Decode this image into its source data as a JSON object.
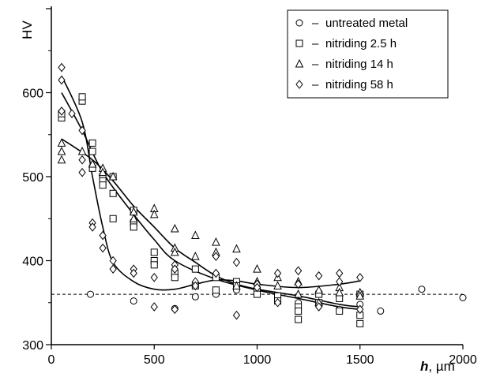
{
  "chart_data": {
    "type": "scatter",
    "ylabel": "HV",
    "xlabel_italic": "h",
    "xlabel_unit": ", µm",
    "xlim": [
      0,
      2000
    ],
    "ylim": [
      300,
      700
    ],
    "xticks": [
      0,
      500,
      1000,
      1500,
      2000
    ],
    "yticks": [
      300,
      400,
      500,
      600
    ],
    "reference_line": {
      "y": 360,
      "style": "dashed"
    },
    "legend_position": "top-right",
    "series": [
      {
        "name": "untreated metal",
        "marker": "circle",
        "points": [
          [
            190,
            360
          ],
          [
            400,
            352
          ],
          [
            600,
            343
          ],
          [
            700,
            357
          ],
          [
            800,
            360
          ],
          [
            900,
            365
          ],
          [
            1000,
            362
          ],
          [
            1100,
            355
          ],
          [
            1200,
            350
          ],
          [
            1300,
            348
          ],
          [
            1400,
            342
          ],
          [
            1500,
            348
          ],
          [
            1600,
            340
          ],
          [
            1800,
            366
          ],
          [
            2000,
            356
          ]
        ],
        "curve": [
          [
            200,
            362
          ],
          [
            1000,
            362
          ],
          [
            2000,
            362
          ]
        ]
      },
      {
        "name": "nitriding 2.5 h",
        "marker": "square",
        "points": [
          [
            50,
            570
          ],
          [
            50,
            575
          ],
          [
            150,
            590
          ],
          [
            150,
            595
          ],
          [
            200,
            540
          ],
          [
            200,
            530
          ],
          [
            200,
            510
          ],
          [
            250,
            500
          ],
          [
            250,
            495
          ],
          [
            250,
            490
          ],
          [
            300,
            500
          ],
          [
            300,
            480
          ],
          [
            300,
            450
          ],
          [
            400,
            460
          ],
          [
            400,
            445
          ],
          [
            400,
            440
          ],
          [
            500,
            410
          ],
          [
            500,
            400
          ],
          [
            500,
            395
          ],
          [
            600,
            385
          ],
          [
            600,
            380
          ],
          [
            700,
            390
          ],
          [
            700,
            370
          ],
          [
            800,
            380
          ],
          [
            800,
            365
          ],
          [
            900,
            375
          ],
          [
            900,
            370
          ],
          [
            1000,
            365
          ],
          [
            1000,
            360
          ],
          [
            1100,
            358
          ],
          [
            1100,
            352
          ],
          [
            1200,
            345
          ],
          [
            1200,
            330
          ],
          [
            1200,
            340
          ],
          [
            1300,
            360
          ],
          [
            1300,
            350
          ],
          [
            1400,
            355
          ],
          [
            1400,
            340
          ],
          [
            1500,
            360
          ],
          [
            1500,
            335
          ],
          [
            1500,
            325
          ]
        ],
        "curve": [
          [
            50,
            600
          ],
          [
            150,
            555
          ],
          [
            250,
            505
          ],
          [
            400,
            455
          ],
          [
            500,
            425
          ],
          [
            600,
            400
          ],
          [
            800,
            378
          ],
          [
            1000,
            365
          ],
          [
            1200,
            355
          ],
          [
            1400,
            345
          ],
          [
            1500,
            342
          ]
        ]
      },
      {
        "name": "nitriding 14 h",
        "marker": "triangle",
        "points": [
          [
            50,
            540
          ],
          [
            50,
            530
          ],
          [
            50,
            520
          ],
          [
            150,
            530
          ],
          [
            200,
            515
          ],
          [
            250,
            510
          ],
          [
            250,
            505
          ],
          [
            300,
            500
          ],
          [
            400,
            458
          ],
          [
            400,
            450
          ],
          [
            500,
            462
          ],
          [
            500,
            455
          ],
          [
            600,
            438
          ],
          [
            600,
            415
          ],
          [
            600,
            410
          ],
          [
            700,
            430
          ],
          [
            700,
            405
          ],
          [
            800,
            422
          ],
          [
            800,
            410
          ],
          [
            900,
            414
          ],
          [
            900,
            370
          ],
          [
            1000,
            390
          ],
          [
            1000,
            375
          ],
          [
            1100,
            380
          ],
          [
            1100,
            370
          ],
          [
            1200,
            375
          ],
          [
            1200,
            360
          ],
          [
            1300,
            365
          ],
          [
            1300,
            350
          ],
          [
            1400,
            368
          ],
          [
            1400,
            362
          ],
          [
            1500,
            362
          ],
          [
            1500,
            358
          ]
        ],
        "curve": [
          [
            50,
            545
          ],
          [
            200,
            520
          ],
          [
            300,
            495
          ],
          [
            400,
            465
          ],
          [
            500,
            440
          ],
          [
            600,
            415
          ],
          [
            700,
            398
          ],
          [
            800,
            382
          ],
          [
            900,
            372
          ],
          [
            1000,
            366
          ],
          [
            1200,
            358
          ],
          [
            1400,
            348
          ],
          [
            1500,
            345
          ]
        ]
      },
      {
        "name": "nitriding 58 h",
        "marker": "diamond",
        "points": [
          [
            50,
            630
          ],
          [
            50,
            615
          ],
          [
            50,
            578
          ],
          [
            100,
            575
          ],
          [
            150,
            555
          ],
          [
            150,
            520
          ],
          [
            150,
            505
          ],
          [
            200,
            445
          ],
          [
            200,
            440
          ],
          [
            250,
            430
          ],
          [
            250,
            415
          ],
          [
            300,
            400
          ],
          [
            300,
            390
          ],
          [
            400,
            390
          ],
          [
            400,
            385
          ],
          [
            500,
            345
          ],
          [
            500,
            380
          ],
          [
            600,
            342
          ],
          [
            600,
            395
          ],
          [
            600,
            390
          ],
          [
            700,
            375
          ],
          [
            700,
            370
          ],
          [
            800,
            405
          ],
          [
            800,
            385
          ],
          [
            900,
            398
          ],
          [
            900,
            335
          ],
          [
            1000,
            372
          ],
          [
            1000,
            368
          ],
          [
            1100,
            385
          ],
          [
            1100,
            350
          ],
          [
            1200,
            388
          ],
          [
            1200,
            372
          ],
          [
            1300,
            382
          ],
          [
            1300,
            345
          ],
          [
            1400,
            385
          ],
          [
            1400,
            375
          ],
          [
            1500,
            380
          ],
          [
            1500,
            342
          ]
        ],
        "curve": [
          [
            50,
            620
          ],
          [
            150,
            565
          ],
          [
            200,
            500
          ],
          [
            250,
            440
          ],
          [
            300,
            398
          ],
          [
            400,
            375
          ],
          [
            500,
            366
          ],
          [
            600,
            366
          ],
          [
            700,
            372
          ],
          [
            800,
            377
          ],
          [
            900,
            376
          ],
          [
            1000,
            372
          ],
          [
            1200,
            368
          ],
          [
            1400,
            372
          ],
          [
            1500,
            376
          ]
        ]
      }
    ]
  }
}
